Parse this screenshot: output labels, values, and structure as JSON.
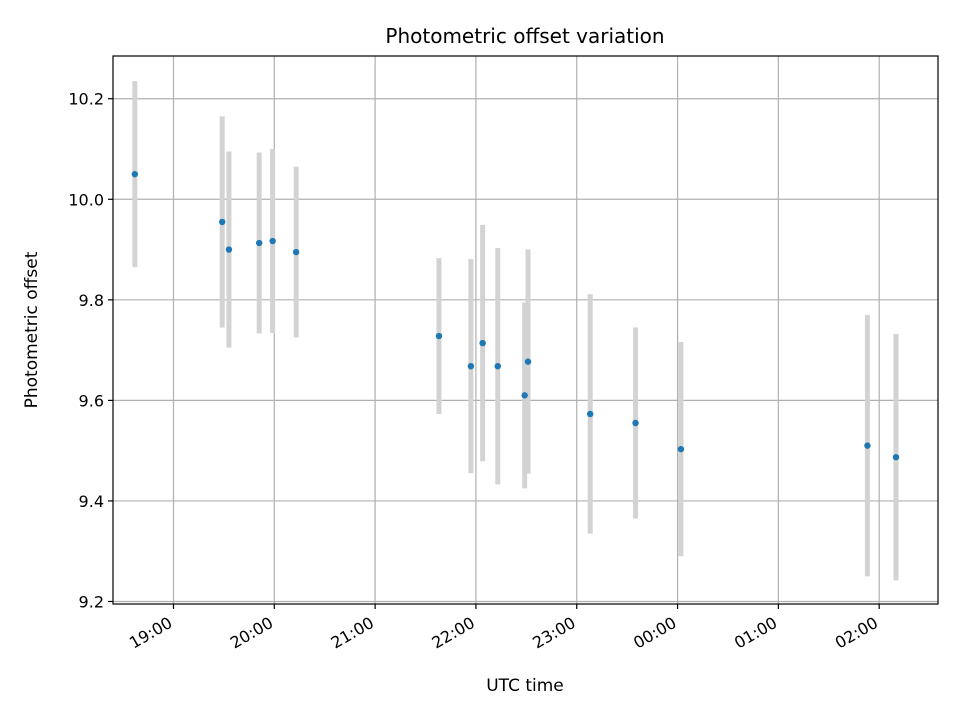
{
  "chart_data": {
    "type": "scatter",
    "title": "Photometric offset variation",
    "xlabel": "UTC time",
    "ylabel": "Photometric offset",
    "x_axis_type": "time",
    "x_start": "18:24",
    "x_end": "02:35 (next day)",
    "ylim": [
      9.195,
      10.285
    ],
    "yticks": [
      9.2,
      9.4,
      9.6,
      9.8,
      10.0,
      10.2
    ],
    "xticks": [
      "19:00",
      "20:00",
      "21:00",
      "22:00",
      "23:00",
      "00:00",
      "01:00",
      "02:00"
    ],
    "grid": true,
    "marker_color": "#1f77b4",
    "errorbar_color": "#d3d3d3",
    "points": [
      {
        "time": "18:37",
        "y": 10.05,
        "err": 0.185
      },
      {
        "time": "19:29",
        "y": 9.955,
        "err": 0.21
      },
      {
        "time": "19:33",
        "y": 9.9,
        "err": 0.195
      },
      {
        "time": "19:51",
        "y": 9.913,
        "err": 0.18
      },
      {
        "time": "19:59",
        "y": 9.917,
        "err": 0.183
      },
      {
        "time": "20:13",
        "y": 9.895,
        "err": 0.17
      },
      {
        "time": "21:38",
        "y": 9.728,
        "err": 0.155
      },
      {
        "time": "21:57",
        "y": 9.668,
        "err": 0.213
      },
      {
        "time": "22:04",
        "y": 9.714,
        "err": 0.235
      },
      {
        "time": "22:13",
        "y": 9.668,
        "err": 0.235
      },
      {
        "time": "22:29",
        "y": 9.61,
        "err": 0.185
      },
      {
        "time": "22:31",
        "y": 9.677,
        "err": 0.223
      },
      {
        "time": "23:08",
        "y": 9.573,
        "err": 0.238
      },
      {
        "time": "23:35",
        "y": 9.555,
        "err": 0.19
      },
      {
        "time": "00:02",
        "y": 9.503,
        "err": 0.213
      },
      {
        "time": "01:53",
        "y": 9.51,
        "err": 0.26
      },
      {
        "time": "02:10",
        "y": 9.487,
        "err": 0.245
      }
    ]
  }
}
